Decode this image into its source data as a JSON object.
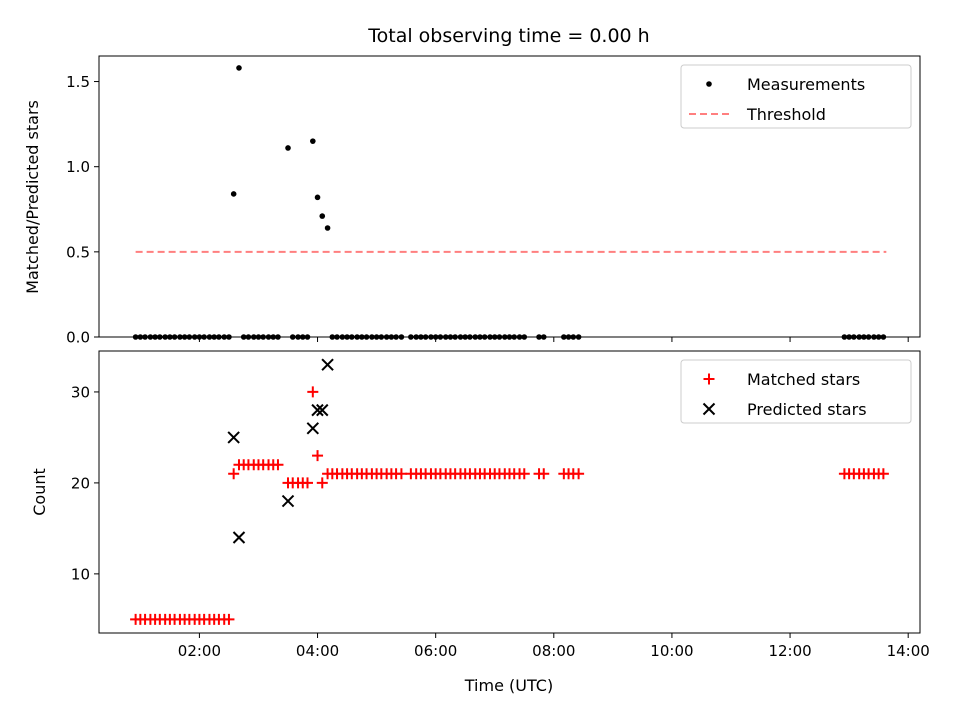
{
  "chart_data": [
    {
      "type": "scatter",
      "title": "Total observing time = 0.00 h",
      "xlabel": "",
      "ylabel": "Matched/Predicted stars",
      "xlim": [
        0.3,
        14.2
      ],
      "ylim": [
        0,
        1.65
      ],
      "x_ticks": [
        2,
        4,
        6,
        8,
        10,
        12,
        14
      ],
      "y_ticks": [
        0,
        0.5,
        1,
        1.5
      ],
      "y_tick_labels": [
        "0.0",
        "0.5",
        "1.0",
        "1.5"
      ],
      "grid": false,
      "legend_placement": "top-right",
      "series": [
        {
          "name": "Measurements",
          "marker": "dot",
          "color": "#000000",
          "points": [
            [
              2.58,
              0.84
            ],
            [
              2.67,
              1.58
            ],
            [
              3.5,
              1.11
            ],
            [
              3.92,
              1.15
            ],
            [
              4.0,
              0.82
            ],
            [
              4.08,
              0.71
            ],
            [
              4.17,
              0.64
            ],
            [
              0.92,
              0
            ],
            [
              1.0,
              0
            ],
            [
              1.08,
              0
            ],
            [
              1.17,
              0
            ],
            [
              1.25,
              0
            ],
            [
              1.33,
              0
            ],
            [
              1.42,
              0
            ],
            [
              1.5,
              0
            ],
            [
              1.58,
              0
            ],
            [
              1.67,
              0
            ],
            [
              1.75,
              0
            ],
            [
              1.83,
              0
            ],
            [
              1.92,
              0
            ],
            [
              2.0,
              0
            ],
            [
              2.08,
              0
            ],
            [
              2.17,
              0
            ],
            [
              2.25,
              0
            ],
            [
              2.33,
              0
            ],
            [
              2.42,
              0
            ],
            [
              2.5,
              0
            ],
            [
              2.75,
              0
            ],
            [
              2.83,
              0
            ],
            [
              2.92,
              0
            ],
            [
              3.0,
              0
            ],
            [
              3.08,
              0
            ],
            [
              3.17,
              0
            ],
            [
              3.25,
              0
            ],
            [
              3.33,
              0
            ],
            [
              3.58,
              0
            ],
            [
              3.67,
              0
            ],
            [
              3.75,
              0
            ],
            [
              3.83,
              0
            ],
            [
              4.25,
              0
            ],
            [
              4.33,
              0
            ],
            [
              4.42,
              0
            ],
            [
              4.5,
              0
            ],
            [
              4.58,
              0
            ],
            [
              4.67,
              0
            ],
            [
              4.75,
              0
            ],
            [
              4.83,
              0
            ],
            [
              4.92,
              0
            ],
            [
              5.0,
              0
            ],
            [
              5.08,
              0
            ],
            [
              5.17,
              0
            ],
            [
              5.25,
              0
            ],
            [
              5.33,
              0
            ],
            [
              5.42,
              0
            ],
            [
              5.58,
              0
            ],
            [
              5.67,
              0
            ],
            [
              5.75,
              0
            ],
            [
              5.83,
              0
            ],
            [
              5.92,
              0
            ],
            [
              6.0,
              0
            ],
            [
              6.08,
              0
            ],
            [
              6.17,
              0
            ],
            [
              6.25,
              0
            ],
            [
              6.33,
              0
            ],
            [
              6.42,
              0
            ],
            [
              6.5,
              0
            ],
            [
              6.58,
              0
            ],
            [
              6.67,
              0
            ],
            [
              6.75,
              0
            ],
            [
              6.83,
              0
            ],
            [
              6.92,
              0
            ],
            [
              7.0,
              0
            ],
            [
              7.08,
              0
            ],
            [
              7.17,
              0
            ],
            [
              7.25,
              0
            ],
            [
              7.33,
              0
            ],
            [
              7.42,
              0
            ],
            [
              7.5,
              0
            ],
            [
              7.75,
              0
            ],
            [
              7.83,
              0
            ],
            [
              8.17,
              0
            ],
            [
              8.25,
              0
            ],
            [
              8.33,
              0
            ],
            [
              8.42,
              0
            ],
            [
              12.92,
              0
            ],
            [
              13.0,
              0
            ],
            [
              13.08,
              0
            ],
            [
              13.17,
              0
            ],
            [
              13.25,
              0
            ],
            [
              13.33,
              0
            ],
            [
              13.42,
              0
            ],
            [
              13.5,
              0
            ],
            [
              13.58,
              0
            ]
          ]
        },
        {
          "name": "Threshold",
          "marker": "dashed-line",
          "color": "#ff7f7f",
          "points": [
            [
              0.92,
              0.5
            ],
            [
              13.63,
              0.5
            ]
          ]
        }
      ]
    },
    {
      "type": "scatter",
      "title": "",
      "xlabel": "Time (UTC)",
      "ylabel": "Count",
      "xlim": [
        0.3,
        14.2
      ],
      "ylim": [
        3.5,
        34.5
      ],
      "x_ticks": [
        2,
        4,
        6,
        8,
        10,
        12,
        14
      ],
      "x_tick_labels": [
        "02:00",
        "04:00",
        "06:00",
        "08:00",
        "10:00",
        "12:00",
        "14:00"
      ],
      "y_ticks": [
        10,
        20,
        30
      ],
      "y_tick_labels": [
        "10",
        "20",
        "30"
      ],
      "grid": false,
      "legend_placement": "top-right",
      "series": [
        {
          "name": "Matched stars",
          "marker": "plus",
          "color": "#ff0000",
          "points": [
            [
              0.92,
              5
            ],
            [
              1.0,
              5
            ],
            [
              1.08,
              5
            ],
            [
              1.17,
              5
            ],
            [
              1.25,
              5
            ],
            [
              1.33,
              5
            ],
            [
              1.42,
              5
            ],
            [
              1.5,
              5
            ],
            [
              1.58,
              5
            ],
            [
              1.67,
              5
            ],
            [
              1.75,
              5
            ],
            [
              1.83,
              5
            ],
            [
              1.92,
              5
            ],
            [
              2.0,
              5
            ],
            [
              2.08,
              5
            ],
            [
              2.17,
              5
            ],
            [
              2.25,
              5
            ],
            [
              2.33,
              5
            ],
            [
              2.42,
              5
            ],
            [
              2.5,
              5
            ],
            [
              2.58,
              21
            ],
            [
              2.67,
              22
            ],
            [
              2.75,
              22
            ],
            [
              2.83,
              22
            ],
            [
              2.92,
              22
            ],
            [
              3.0,
              22
            ],
            [
              3.08,
              22
            ],
            [
              3.17,
              22
            ],
            [
              3.25,
              22
            ],
            [
              3.33,
              22
            ],
            [
              3.5,
              20
            ],
            [
              3.58,
              20
            ],
            [
              3.67,
              20
            ],
            [
              3.75,
              20
            ],
            [
              3.83,
              20
            ],
            [
              3.92,
              30
            ],
            [
              4.0,
              23
            ],
            [
              4.08,
              20
            ],
            [
              4.17,
              21
            ],
            [
              4.25,
              21
            ],
            [
              4.33,
              21
            ],
            [
              4.42,
              21
            ],
            [
              4.5,
              21
            ],
            [
              4.58,
              21
            ],
            [
              4.67,
              21
            ],
            [
              4.75,
              21
            ],
            [
              4.83,
              21
            ],
            [
              4.92,
              21
            ],
            [
              5.0,
              21
            ],
            [
              5.08,
              21
            ],
            [
              5.17,
              21
            ],
            [
              5.25,
              21
            ],
            [
              5.33,
              21
            ],
            [
              5.42,
              21
            ],
            [
              5.58,
              21
            ],
            [
              5.67,
              21
            ],
            [
              5.75,
              21
            ],
            [
              5.83,
              21
            ],
            [
              5.92,
              21
            ],
            [
              6.0,
              21
            ],
            [
              6.08,
              21
            ],
            [
              6.17,
              21
            ],
            [
              6.25,
              21
            ],
            [
              6.33,
              21
            ],
            [
              6.42,
              21
            ],
            [
              6.5,
              21
            ],
            [
              6.58,
              21
            ],
            [
              6.67,
              21
            ],
            [
              6.75,
              21
            ],
            [
              6.83,
              21
            ],
            [
              6.92,
              21
            ],
            [
              7.0,
              21
            ],
            [
              7.08,
              21
            ],
            [
              7.17,
              21
            ],
            [
              7.25,
              21
            ],
            [
              7.33,
              21
            ],
            [
              7.42,
              21
            ],
            [
              7.5,
              21
            ],
            [
              7.75,
              21
            ],
            [
              7.83,
              21
            ],
            [
              8.17,
              21
            ],
            [
              8.25,
              21
            ],
            [
              8.33,
              21
            ],
            [
              8.42,
              21
            ],
            [
              12.92,
              21
            ],
            [
              13.0,
              21
            ],
            [
              13.08,
              21
            ],
            [
              13.17,
              21
            ],
            [
              13.25,
              21
            ],
            [
              13.33,
              21
            ],
            [
              13.42,
              21
            ],
            [
              13.5,
              21
            ],
            [
              13.58,
              21
            ]
          ]
        },
        {
          "name": "Predicted stars",
          "marker": "x",
          "color": "#000000",
          "points": [
            [
              2.58,
              25
            ],
            [
              2.67,
              14
            ],
            [
              3.5,
              18
            ],
            [
              3.92,
              26
            ],
            [
              4.0,
              28
            ],
            [
              4.08,
              28
            ],
            [
              4.17,
              33
            ]
          ]
        }
      ]
    }
  ]
}
